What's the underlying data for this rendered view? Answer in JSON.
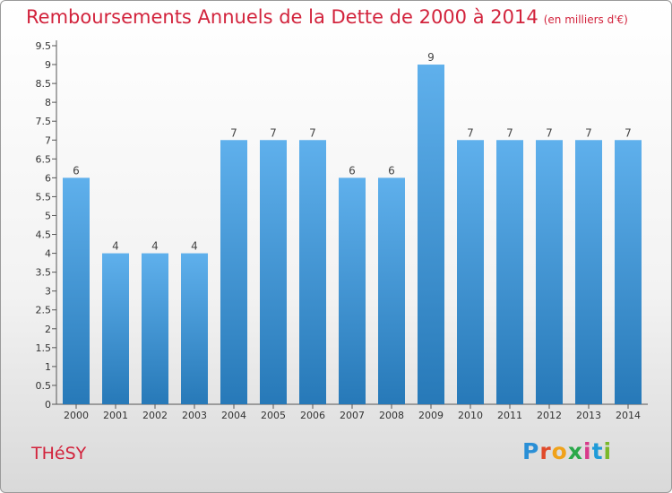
{
  "title": "Remboursements Annuels de la Dette de 2000 à 2014",
  "unit_note": "(en milliers d'€)",
  "place_name": "THéSY",
  "brand": "Proxiti",
  "colors": {
    "title": "#d2233c",
    "bar_top": "#5fb0ec",
    "bar_bottom": "#2779b8",
    "axis": "#555555"
  },
  "chart_data": {
    "type": "bar",
    "title": "Remboursements Annuels de la Dette de 2000 à 2014",
    "categories": [
      "2000",
      "2001",
      "2002",
      "2003",
      "2004",
      "2005",
      "2006",
      "2007",
      "2008",
      "2009",
      "2010",
      "2011",
      "2012",
      "2013",
      "2014"
    ],
    "values": [
      6,
      4,
      4,
      4,
      7,
      7,
      7,
      6,
      6,
      9,
      7,
      7,
      7,
      7,
      7
    ],
    "ylim": [
      0,
      9.5
    ],
    "yticks": [
      "0",
      "0.5",
      "1",
      "1.5",
      "2",
      "2.5",
      "3",
      "3.5",
      "4",
      "4.5",
      "5",
      "5.5",
      "6",
      "6.5",
      "7",
      "7.5",
      "8",
      "8.5",
      "9",
      "9.5"
    ],
    "grid": false,
    "data_labels": true
  }
}
